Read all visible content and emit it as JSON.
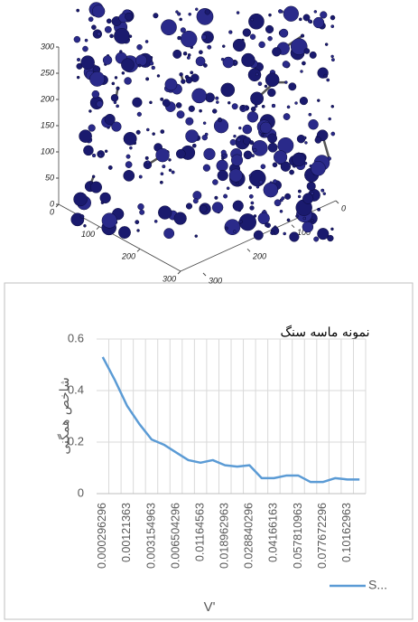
{
  "chart_data": [
    {
      "type": "network3d",
      "xticks": [
        0,
        100,
        200,
        300
      ],
      "yticks": [
        0,
        100,
        200,
        300
      ],
      "zticks": [
        0,
        50,
        100,
        150,
        200,
        250,
        300
      ]
    },
    {
      "type": "line",
      "title": "نمونه ماسه سنگ",
      "y_label": "شاخص همگنی",
      "x_label": "V'",
      "categories": [
        "0.000296296",
        null,
        "0.00121363",
        null,
        "0.003154963",
        null,
        "0.006504296",
        null,
        "0.01164563",
        null,
        "0.018962963",
        null,
        "0.028840296",
        null,
        "0.04166163",
        null,
        "0.057810963",
        null,
        "0.077672296",
        null,
        "0.10162963",
        null
      ],
      "series": [
        {
          "name": "S...",
          "color": "#5b9bd5",
          "values": [
            0.53,
            0.44,
            0.34,
            0.27,
            0.21,
            0.19,
            0.16,
            0.13,
            0.12,
            0.13,
            0.11,
            0.105,
            0.11,
            0.06,
            0.06,
            0.07,
            0.07,
            0.045,
            0.045,
            0.06,
            0.055,
            0.055
          ]
        }
      ],
      "ylim": [
        0,
        0.6
      ],
      "yticks": [
        0,
        {
          "value": 0.2,
          "label": "0.2"
        },
        {
          "value": 0.4,
          "label": "0.4"
        },
        {
          "value": 0.6,
          "label": "0.6"
        }
      ],
      "grid": true,
      "legend": "bottom-right"
    }
  ]
}
